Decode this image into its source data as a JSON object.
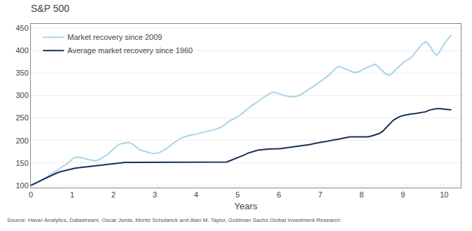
{
  "chart_data": {
    "type": "line",
    "title": "S&P 500",
    "xlabel": "Years",
    "annotations": [
      "Source: Haver Analytics, Datastream, Oscar Jorda, Moritz Schularick and Alan M. Taylor, Goldman Sachs Global Investment Research"
    ],
    "x": [
      0,
      0.0877,
      0.1753,
      0.263,
      0.3507,
      0.4384,
      0.526,
      0.6137,
      0.7014,
      0.7891,
      0.8767,
      0.9644,
      1.0521,
      1.1397,
      1.2274,
      1.3151,
      1.4028,
      1.4904,
      1.5781,
      1.6658,
      1.7534,
      1.8411,
      1.9288,
      2.0165,
      2.1041,
      2.1918,
      2.2795,
      2.3672,
      2.4548,
      2.5425,
      2.6302,
      2.7178,
      2.8055,
      2.8932,
      2.9809,
      3.0685,
      3.1562,
      3.2439,
      3.3316,
      3.4192,
      3.5069,
      3.5946,
      3.6822,
      3.7699,
      3.8576,
      3.9453,
      4.0329,
      4.1206,
      4.2083,
      4.2959,
      4.3836,
      4.4713,
      4.559,
      4.6466,
      4.7343,
      4.822,
      4.9097,
      4.9973,
      5.085,
      5.1727,
      5.2603,
      5.348,
      5.4357,
      5.5234,
      5.611,
      5.6987,
      5.7864,
      5.8741,
      5.9617,
      6.0494,
      6.1371,
      6.2247,
      6.3124,
      6.4001,
      6.4878,
      6.5754,
      6.6631,
      6.7508,
      6.8384,
      6.9261,
      7.0138,
      7.1015,
      7.1891,
      7.2768,
      7.3645,
      7.4522,
      7.5398,
      7.6275,
      7.7152,
      7.8028,
      7.8905,
      7.9782,
      8.0659,
      8.1535,
      8.2412,
      8.3289,
      8.4166,
      8.5042,
      8.5919,
      8.6796,
      8.7672,
      8.8549,
      8.9426,
      9.0303,
      9.1179,
      9.2056,
      9.2933,
      9.3809,
      9.4686,
      9.5563,
      9.644,
      9.7316,
      9.8193,
      9.907,
      9.9947,
      10.0823,
      10.17
    ],
    "series": [
      {
        "name": "Market recovery since 2009",
        "color": "#a8d4e8",
        "values": [
          100,
          103,
          107,
          112,
          117,
          122,
          127,
          133,
          138,
          142,
          148,
          155,
          162,
          163,
          162,
          159,
          157,
          156,
          155,
          158,
          163,
          168,
          175,
          182,
          190,
          193,
          195,
          196,
          192,
          186,
          180,
          177,
          174,
          172,
          171,
          172,
          175,
          180,
          185,
          192,
          198,
          203,
          207,
          210,
          212,
          213,
          215,
          216,
          218,
          220,
          222,
          225,
          228,
          232,
          238,
          244,
          248,
          253,
          258,
          265,
          272,
          278,
          283,
          288,
          295,
          300,
          305,
          308,
          306,
          303,
          300,
          298,
          297,
          298,
          300,
          305,
          310,
          316,
          320,
          326,
          332,
          338,
          344,
          352,
          360,
          365,
          362,
          358,
          355,
          352,
          352,
          355,
          360,
          363,
          367,
          370,
          363,
          355,
          348,
          345,
          353,
          360,
          368,
          375,
          380,
          385,
          395,
          405,
          415,
          420,
          412,
          398,
          390,
          400,
          415,
          425,
          435
        ]
      },
      {
        "name": "Average market recovery since 1960",
        "color": "#1a2e5a",
        "values": [
          100,
          104,
          108,
          112,
          116,
          120,
          124,
          127,
          130,
          132,
          135,
          137,
          138,
          139,
          140,
          141,
          142,
          143,
          144,
          145,
          146,
          147,
          148,
          149,
          150,
          151,
          151,
          151,
          151,
          151,
          151,
          151,
          151,
          151,
          151,
          151,
          151,
          151,
          151,
          151,
          151,
          151,
          151,
          151,
          151,
          151,
          151,
          151,
          151,
          151,
          151,
          151,
          151,
          151,
          152,
          155,
          158,
          162,
          165,
          168,
          172,
          175,
          177,
          179,
          180,
          181,
          181,
          181,
          181,
          182,
          183,
          184,
          185,
          186,
          187,
          188,
          190,
          191,
          193,
          195,
          196,
          197,
          199,
          200,
          202,
          203,
          205,
          207,
          208,
          208,
          208,
          208,
          207,
          208,
          210,
          212,
          215,
          220,
          228,
          237,
          245,
          250,
          254,
          256,
          258,
          259,
          260,
          261,
          262,
          264,
          268,
          270,
          271,
          271,
          270,
          269,
          268
        ]
      }
    ],
    "xlim": [
      0,
      10.4
    ],
    "xticks": [
      0,
      1,
      2,
      3,
      4,
      5,
      6,
      7,
      8,
      9,
      10
    ],
    "ylim": [
      95,
      460
    ],
    "yticks": [
      100,
      150,
      200,
      250,
      300,
      350,
      400,
      450
    ],
    "grid": "y",
    "legend": "upper left"
  }
}
